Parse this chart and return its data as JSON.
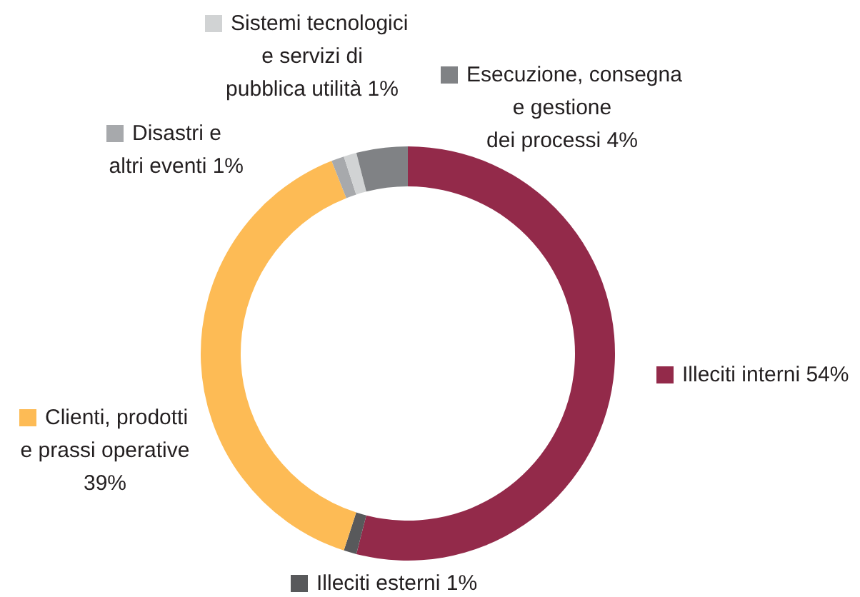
{
  "chart_data": {
    "type": "donut",
    "categories": [
      "Illeciti interni",
      "Illeciti esterni",
      "Clienti, prodotti\ne prassi operative",
      "Disastri e\naltri eventi",
      "Sistemi tecnologici\ne servizi di\npubblica utilità",
      "Esecuzione, consegna\ne gestione\ndei processi"
    ],
    "values": [
      54,
      1,
      39,
      1,
      1,
      4
    ],
    "colors": [
      "#932a4a",
      "#58595b",
      "#fdbb55",
      "#a7a9ac",
      "#d1d3d4",
      "#808285"
    ],
    "value_labels": [
      "54%",
      "1%",
      "39%",
      "1%",
      "1%",
      "4%"
    ],
    "legend": true
  }
}
